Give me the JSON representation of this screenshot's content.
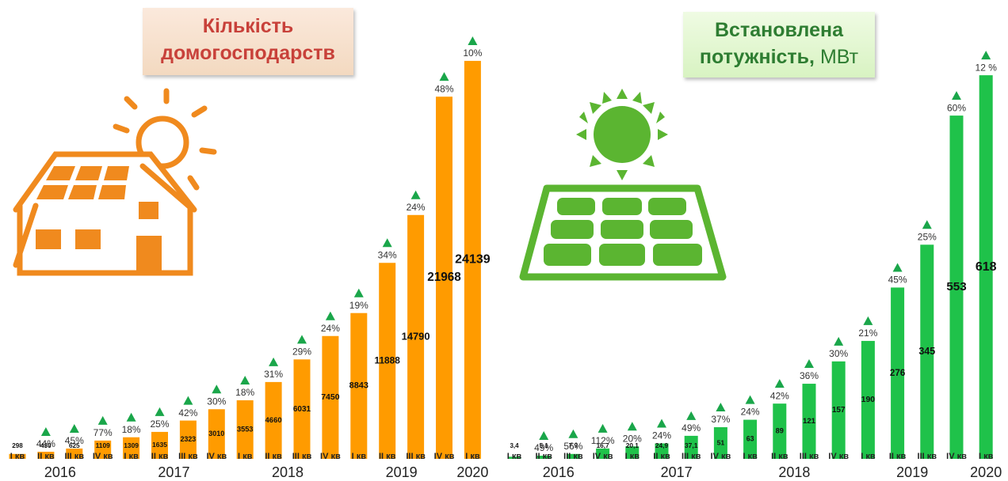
{
  "chart_data": [
    {
      "type": "bar",
      "title": "Кількість домогосподарств",
      "color": "#ff9b00",
      "categories": [
        "I кв",
        "II кв",
        "III кв",
        "IV кв",
        "I кв",
        "II кв",
        "III кв",
        "IV кв",
        "I кв",
        "II кв",
        "III кв",
        "IV кв",
        "I кв",
        "II кв",
        "III кв",
        "IV кв",
        "I кв"
      ],
      "years": [
        "2016",
        "2017",
        "2018",
        "2019",
        "2020"
      ],
      "values": [
        298,
        430,
        625,
        1109,
        1309,
        1635,
        2323,
        3010,
        3553,
        4660,
        6031,
        7450,
        8843,
        11888,
        14790,
        21968,
        24139
      ],
      "growth_labels": [
        null,
        "44%",
        "45%",
        "77%",
        "18%",
        "25%",
        "42%",
        "30%",
        "18%",
        "31%",
        "29%",
        "24%",
        "19%",
        "34%",
        "24%",
        "48%",
        "10%"
      ],
      "ylim": [
        0,
        25000
      ]
    },
    {
      "type": "bar",
      "title": "Встановлена потужність,",
      "unit": "МВт",
      "color": "#1fc24a",
      "categories": [
        "I кв",
        "II кв",
        "III кв",
        "IV кв",
        "I кв",
        "II кв",
        "III кв",
        "IV кв",
        "I кв",
        "II кв",
        "III кв",
        "IV кв",
        "I кв",
        "II кв",
        "III кв",
        "IV кв",
        "I кв"
      ],
      "years": [
        "2016",
        "2017",
        "2018",
        "2019",
        "2020"
      ],
      "values": [
        3.4,
        5.1,
        7.9,
        16.7,
        20.1,
        24.9,
        37.1,
        51,
        63,
        89,
        121,
        157,
        190,
        276,
        345,
        553,
        618
      ],
      "value_labels": [
        "3,4",
        "5,1",
        "7,9",
        "16,7",
        "20,1",
        "24,9",
        "37,1",
        null,
        null,
        null,
        null,
        null,
        null,
        null,
        null,
        null,
        null
      ],
      "growth_labels": [
        null,
        "49%",
        "56%",
        "112%",
        "20%",
        "24%",
        "49%",
        "37%",
        "24%",
        "42%",
        "36%",
        "30%",
        "21%",
        "45%",
        "25%",
        "60%",
        "12 %"
      ],
      "ylim": [
        0,
        650
      ]
    }
  ]
}
